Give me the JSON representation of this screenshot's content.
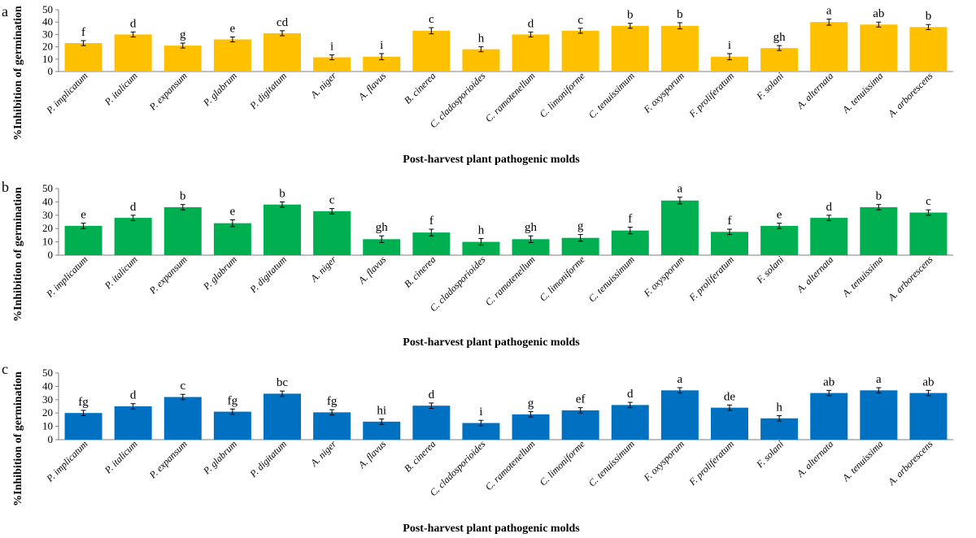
{
  "chart_data": [
    {
      "type": "bar",
      "panel": "a",
      "color": "#FFC000",
      "ylabel": "%Inhibition of germination",
      "xlabel": "Post-harvest plant pathogenic molds",
      "ylim": [
        0,
        50
      ],
      "yticks": [
        0,
        10,
        20,
        30,
        40,
        50
      ],
      "categories": [
        "P. implicatum",
        "P. italicum",
        "P. expansum",
        "P. glabrum",
        "P. digitatum",
        "A. niger",
        "A. flavus",
        "B. cinerea",
        "C. cladosporioides",
        "C. ramotenellum",
        "C. limoniforme",
        "C. tenuissimum",
        "F. oxysporum",
        "F. proliferatum",
        "F. solani",
        "A. alternata",
        "A. tenuissima",
        "A. arborescens"
      ],
      "values": [
        23,
        30,
        21,
        26,
        31,
        11.5,
        12,
        33,
        18,
        30,
        33,
        37,
        37,
        12,
        19,
        40,
        38,
        36
      ],
      "errors": [
        2,
        2,
        2,
        2,
        2,
        2,
        2.5,
        2.5,
        2,
        2,
        2,
        2,
        2.5,
        2.5,
        2,
        2.5,
        2,
        2
      ],
      "letters": [
        "f",
        "d",
        "g",
        "e",
        "cd",
        "i",
        "i",
        "c",
        "h",
        "d",
        "c",
        "b",
        "b",
        "i",
        "gh",
        "a",
        "ab",
        "b"
      ]
    },
    {
      "type": "bar",
      "panel": "b",
      "color": "#00B050",
      "ylabel": "%Inhibition of germination",
      "xlabel": "Post-harvest plant pathogenic molds",
      "ylim": [
        0,
        50
      ],
      "yticks": [
        0,
        10,
        20,
        30,
        40,
        50
      ],
      "categories": [
        "P. implicatum",
        "P. italicum",
        "P. expansum",
        "P. glabrum",
        "P. digitatum",
        "A. niger",
        "A. flavus",
        "B. cinerea",
        "C. cladosporioides",
        "C. ramotenellum",
        "C. limoniforme",
        "C. tenuissimum",
        "F. oxysporum",
        "F. proliferatum",
        "F. solani",
        "A. alternata",
        "A. tenuissima",
        "A. arborescens"
      ],
      "values": [
        22,
        28,
        36,
        24,
        38,
        33,
        12,
        17,
        10,
        12,
        13,
        18.5,
        41,
        17.5,
        22,
        28,
        36,
        32
      ],
      "errors": [
        2,
        2,
        2,
        2.5,
        2,
        2,
        2.5,
        2.5,
        2.5,
        2.5,
        2.5,
        2.5,
        2.5,
        2,
        2,
        2,
        2,
        2
      ],
      "letters": [
        "e",
        "d",
        "b",
        "e",
        "b",
        "c",
        "gh",
        "f",
        "h",
        "gh",
        "g",
        "f",
        "a",
        "f",
        "e",
        "d",
        "b",
        "c"
      ]
    },
    {
      "type": "bar",
      "panel": "c",
      "color": "#0070C0",
      "ylabel": "%Inhibition of germination",
      "xlabel": "Post-harvest plant pathogenic molds",
      "ylim": [
        0,
        50
      ],
      "yticks": [
        0,
        10,
        20,
        30,
        40,
        50
      ],
      "categories": [
        "P. implicatum",
        "P. italicum",
        "P. expansum",
        "P. glabrum",
        "P. digitatum",
        "A. niger",
        "A. flavus",
        "B. cinerea",
        "C. cladosporioides",
        "C. ramotenellum",
        "C. limoniforme",
        "C. tenuissimum",
        "F. oxysporum",
        "F. proliferatum",
        "F. solani",
        "A. alternata",
        "A. tenuissima",
        "A. arborescens"
      ],
      "values": [
        20,
        25,
        32,
        21,
        34.5,
        20.5,
        13.5,
        25.5,
        12.5,
        19,
        22,
        26,
        37,
        24,
        16,
        35,
        37,
        35
      ],
      "errors": [
        2,
        2,
        2,
        2,
        2,
        2,
        2,
        2,
        2,
        2,
        2,
        2,
        2,
        2,
        2,
        2,
        2,
        2
      ],
      "letters": [
        "fg",
        "d",
        "c",
        "fg",
        "bc",
        "fg",
        "hi",
        "d",
        "i",
        "g",
        "ef",
        "d",
        "a",
        "de",
        "h",
        "ab",
        "a",
        "ab"
      ]
    }
  ]
}
